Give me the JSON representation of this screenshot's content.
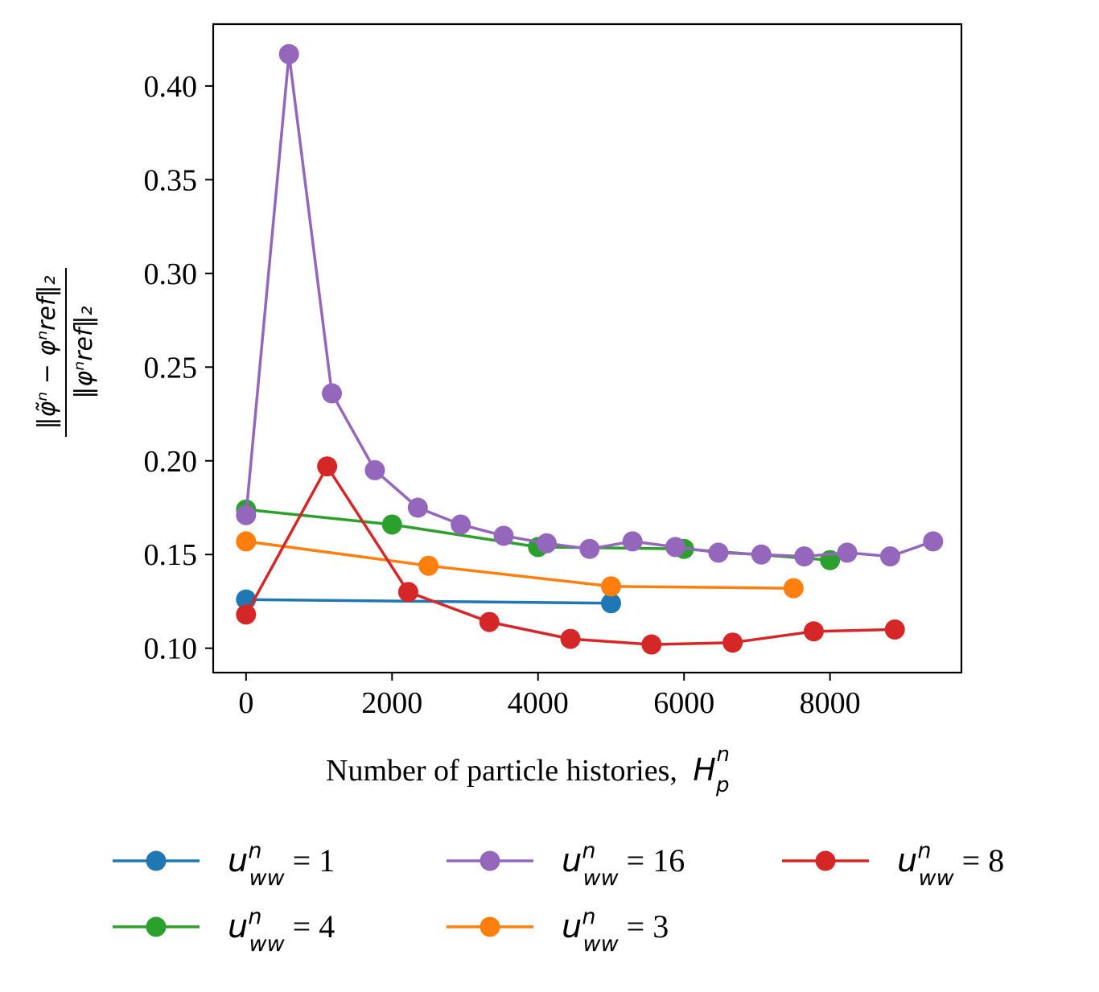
{
  "chart_data": {
    "type": "line",
    "title": "",
    "xlabel": "Number of particle histories, H_p^n",
    "xlabel_main": "Number of particle histories,",
    "xlabel_symbol": "H",
    "xlabel_sub": "p",
    "xlabel_sup": "n",
    "ylabel": "||φ̃^n − φ^n_ref||_2 / ||φ^n_ref||_2",
    "ylabel_numerator": "‖φ̃ⁿ − φⁿref‖₂",
    "ylabel_denominator": "‖φⁿref‖₂",
    "xlim": [
      -450,
      9800
    ],
    "ylim": [
      0.087,
      0.433
    ],
    "xticks": [
      0,
      2000,
      4000,
      6000,
      8000
    ],
    "xtick_labels": [
      "0",
      "2000",
      "4000",
      "6000",
      "8000"
    ],
    "yticks": [
      0.1,
      0.15,
      0.2,
      0.25,
      0.3,
      0.35,
      0.4
    ],
    "ytick_labels": [
      "0.10",
      "0.15",
      "0.20",
      "0.25",
      "0.30",
      "0.35",
      "0.40"
    ],
    "grid": false,
    "legend_position": "bottom-center",
    "series": [
      {
        "name": "u_ww^n = 1",
        "legend_value": "1",
        "color": "#1f77b4",
        "x": [
          0,
          5000
        ],
        "y": [
          0.126,
          0.124
        ]
      },
      {
        "name": "u_ww^n = 3",
        "legend_value": "3",
        "color": "#ff7f0e",
        "x": [
          0,
          2500,
          5000,
          7500
        ],
        "y": [
          0.157,
          0.144,
          0.133,
          0.132
        ]
      },
      {
        "name": "u_ww^n = 4",
        "legend_value": "4",
        "color": "#2ca02c",
        "x": [
          0,
          2000,
          4000,
          6000,
          8000
        ],
        "y": [
          0.174,
          0.166,
          0.154,
          0.153,
          0.147
        ]
      },
      {
        "name": "u_ww^n = 8",
        "legend_value": "8",
        "color": "#d62728",
        "x": [
          0,
          1111,
          2222,
          3333,
          4444,
          5555,
          6666,
          7777,
          8888
        ],
        "y": [
          0.118,
          0.197,
          0.13,
          0.114,
          0.105,
          0.102,
          0.103,
          0.109,
          0.11
        ]
      },
      {
        "name": "u_ww^n = 16",
        "legend_value": "16",
        "color": "#9467bd",
        "x": [
          0,
          588,
          1176,
          1765,
          2353,
          2941,
          3529,
          4118,
          4706,
          5294,
          5882,
          6471,
          7059,
          7647,
          8235,
          8824,
          9412
        ],
        "y": [
          0.171,
          0.417,
          0.236,
          0.195,
          0.175,
          0.166,
          0.16,
          0.156,
          0.153,
          0.157,
          0.154,
          0.151,
          0.15,
          0.149,
          0.151,
          0.149,
          0.157
        ]
      }
    ],
    "legend_order": [
      0,
      2,
      4,
      1,
      3
    ]
  }
}
